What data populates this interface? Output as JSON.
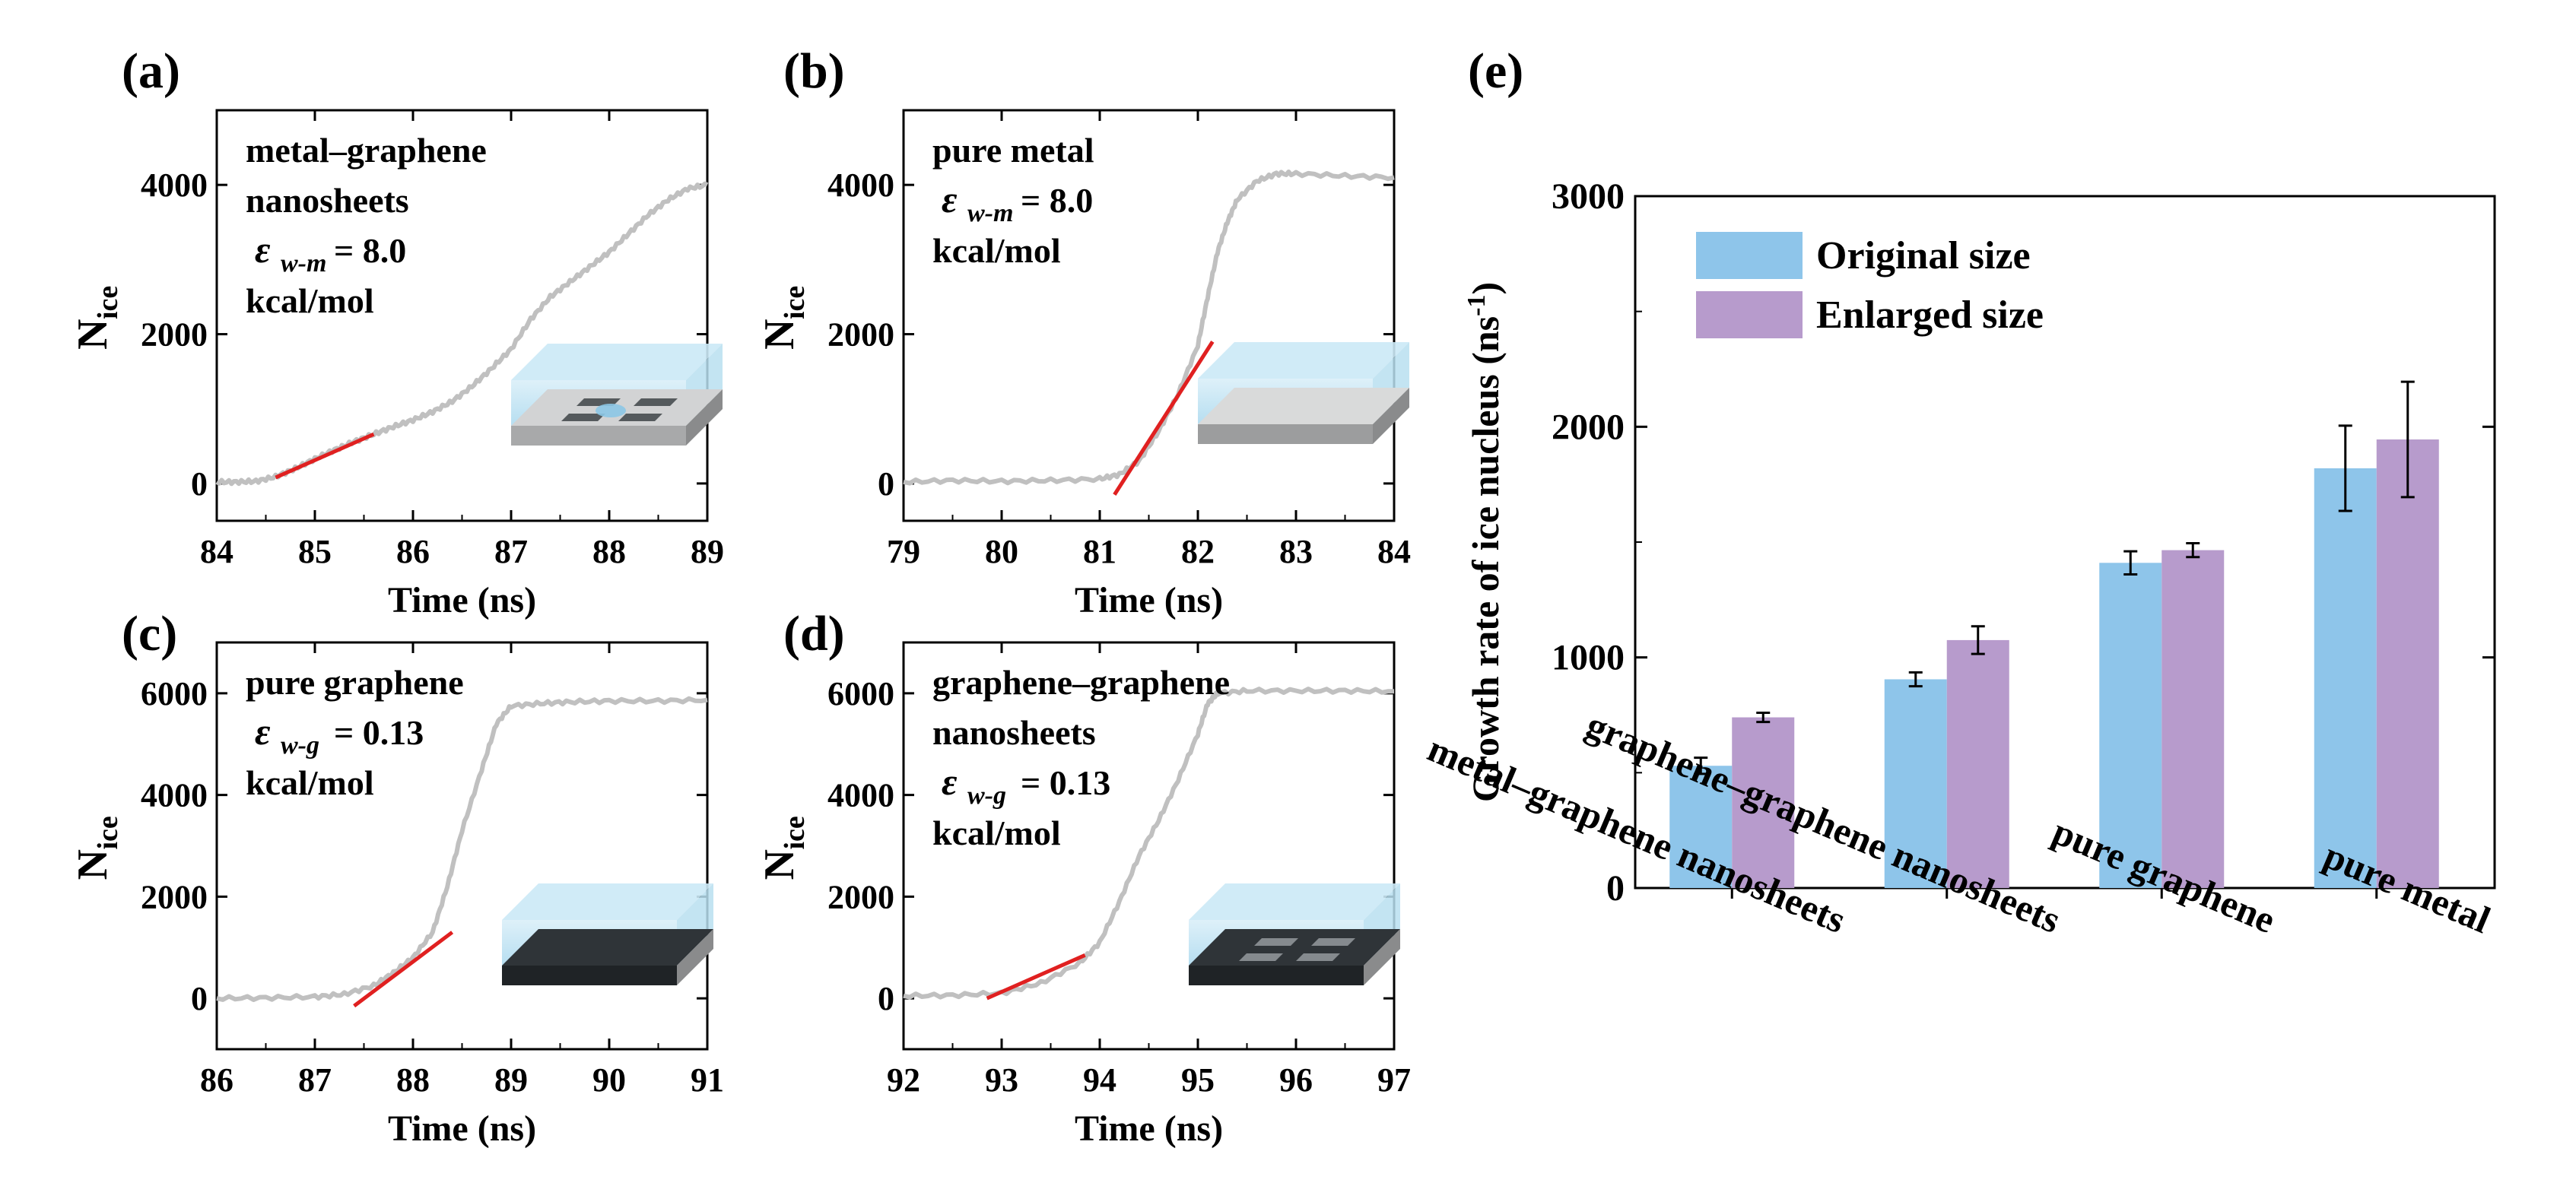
{
  "chart_data": [
    {
      "id": "a",
      "panel_label": "(a)",
      "type": "line",
      "annotation": {
        "line1": "metal–graphene",
        "line2": "nanosheets",
        "eps_symbol": "ε",
        "eps_sub": "w-m",
        "eps_value": "= 8.0",
        "unit": "kcal/mol"
      },
      "xlabel": "Time (ns)",
      "ylabel_main": "N",
      "ylabel_sub": "ice",
      "xlim": [
        84,
        89
      ],
      "ylim": [
        -500,
        5000
      ],
      "xticks": [
        84,
        85,
        86,
        87,
        88,
        89
      ],
      "xtick_labels": [
        "84",
        "85",
        "86",
        "87",
        "88",
        "89"
      ],
      "yticks": [
        0,
        2000,
        4000
      ],
      "ytick_labels": [
        "0",
        "2000",
        "4000"
      ],
      "series": [
        {
          "name": "N_ice",
          "color": "#c0c0c0",
          "x": [
            84.0,
            84.2,
            84.4,
            84.6,
            84.8,
            85.0,
            85.2,
            85.4,
            85.6,
            85.8,
            86.0,
            86.2,
            86.4,
            86.6,
            86.8,
            87.0,
            87.2,
            87.4,
            87.6,
            87.8,
            88.0,
            88.2,
            88.4,
            88.6,
            88.8,
            89.0
          ],
          "y": [
            20,
            20,
            30,
            90,
            200,
            330,
            450,
            560,
            660,
            760,
            850,
            960,
            1100,
            1300,
            1540,
            1800,
            2200,
            2500,
            2700,
            2900,
            3100,
            3350,
            3600,
            3800,
            3950,
            4000
          ]
        }
      ],
      "fit_line": {
        "x": [
          84.6,
          85.6
        ],
        "y": [
          80,
          660
        ],
        "color": "#e02020"
      }
    },
    {
      "id": "b",
      "panel_label": "(b)",
      "type": "line",
      "annotation": {
        "line1": "pure metal",
        "line2": "",
        "eps_symbol": "ε",
        "eps_sub": "w-m",
        "eps_value": "= 8.0",
        "unit": "kcal/mol"
      },
      "xlabel": "Time (ns)",
      "ylabel_main": "N",
      "ylabel_sub": "ice",
      "xlim": [
        79,
        84
      ],
      "ylim": [
        -500,
        5000
      ],
      "xticks": [
        79,
        80,
        81,
        82,
        83,
        84
      ],
      "xtick_labels": [
        "79",
        "80",
        "81",
        "82",
        "83",
        "84"
      ],
      "yticks": [
        0,
        2000,
        4000
      ],
      "ytick_labels": [
        "0",
        "2000",
        "4000"
      ],
      "series": [
        {
          "name": "N_ice",
          "color": "#c0c0c0",
          "x": [
            79.0,
            79.5,
            80.0,
            80.5,
            81.0,
            81.2,
            81.4,
            81.6,
            81.8,
            82.0,
            82.1,
            82.2,
            82.3,
            82.4,
            82.6,
            82.8,
            83.0,
            83.5,
            84.0
          ],
          "y": [
            20,
            40,
            30,
            40,
            60,
            120,
            300,
            700,
            1200,
            1850,
            2500,
            3100,
            3500,
            3800,
            4050,
            4150,
            4150,
            4120,
            4100
          ]
        }
      ],
      "fit_line": {
        "x": [
          81.15,
          82.15
        ],
        "y": [
          -150,
          1900
        ],
        "color": "#e02020"
      }
    },
    {
      "id": "c",
      "panel_label": "(c)",
      "type": "line",
      "annotation": {
        "line1": "pure graphene",
        "line2": "",
        "eps_symbol": "ε",
        "eps_sub": "w-g",
        "eps_value": "= 0.13",
        "unit": "kcal/mol"
      },
      "xlabel": "Time (ns)",
      "ylabel_main": "N",
      "ylabel_sub": "ice",
      "xlim": [
        86,
        91
      ],
      "ylim": [
        -1000,
        7000
      ],
      "xticks": [
        86,
        87,
        88,
        89,
        90,
        91
      ],
      "xtick_labels": [
        "86",
        "87",
        "88",
        "89",
        "90",
        "91"
      ],
      "yticks": [
        0,
        2000,
        4000,
        6000
      ],
      "ytick_labels": [
        "0",
        "2000",
        "4000",
        "6000"
      ],
      "series": [
        {
          "name": "N_ice",
          "color": "#c0c0c0",
          "x": [
            86.0,
            86.5,
            87.0,
            87.3,
            87.6,
            87.8,
            88.0,
            88.2,
            88.35,
            88.5,
            88.7,
            88.85,
            89.0,
            89.3,
            89.6,
            90.0,
            90.5,
            91.0
          ],
          "y": [
            0,
            10,
            30,
            80,
            250,
            500,
            800,
            1300,
            2200,
            3300,
            4500,
            5400,
            5750,
            5800,
            5830,
            5850,
            5850,
            5870
          ]
        }
      ],
      "fit_line": {
        "x": [
          87.4,
          88.4
        ],
        "y": [
          -150,
          1300
        ],
        "color": "#e02020"
      }
    },
    {
      "id": "d",
      "panel_label": "(d)",
      "type": "line",
      "annotation": {
        "line1": "graphene–graphene",
        "line2": "nanosheets",
        "eps_symbol": "ε",
        "eps_sub": "w-g",
        "eps_value": "= 0.13",
        "unit": "kcal/mol"
      },
      "xlabel": "Time (ns)",
      "ylabel_main": "N",
      "ylabel_sub": "ice",
      "xlim": [
        92,
        97
      ],
      "ylim": [
        -1000,
        7000
      ],
      "xticks": [
        92,
        93,
        94,
        95,
        96,
        97
      ],
      "xtick_labels": [
        "92",
        "93",
        "94",
        "95",
        "96",
        "97"
      ],
      "yticks": [
        0,
        2000,
        4000,
        6000
      ],
      "ytick_labels": [
        "0",
        "2000",
        "4000",
        "6000"
      ],
      "series": [
        {
          "name": "N_ice",
          "color": "#c0c0c0",
          "x": [
            92.0,
            92.5,
            93.0,
            93.4,
            93.8,
            94.0,
            94.2,
            94.4,
            94.6,
            94.8,
            95.0,
            95.1,
            95.2,
            95.5,
            96.0,
            96.5,
            97.0
          ],
          "y": [
            50,
            60,
            100,
            300,
            700,
            1100,
            1900,
            2800,
            3500,
            4300,
            5200,
            5800,
            6000,
            6050,
            6050,
            6050,
            6040
          ]
        }
      ],
      "fit_line": {
        "x": [
          92.85,
          93.85
        ],
        "y": [
          0,
          850
        ],
        "color": "#e02020"
      }
    },
    {
      "id": "e",
      "panel_label": "(e)",
      "type": "bar",
      "ylabel_text": "Growth rate of ice nucleus (ns",
      "ylabel_sup": "-1",
      "ylabel_close": ")",
      "ylim": [
        0,
        3000
      ],
      "yticks": [
        0,
        1000,
        2000,
        3000
      ],
      "ytick_labels": [
        "0",
        "1000",
        "2000",
        "3000"
      ],
      "categories": [
        "metal–graphene nanosheets",
        "graphene–graphene nanosheets",
        "pure graphene",
        "pure metal"
      ],
      "series": [
        {
          "name": "Original  size",
          "color": "#8ec5ea",
          "values": [
            530,
            905,
            1410,
            1820
          ],
          "errors": [
            35,
            30,
            50,
            185
          ]
        },
        {
          "name": "Enlarged size",
          "color": "#b79bcc",
          "values": [
            740,
            1075,
            1465,
            1945
          ],
          "errors": [
            20,
            60,
            30,
            250
          ]
        }
      ],
      "legend": "top-left"
    }
  ]
}
